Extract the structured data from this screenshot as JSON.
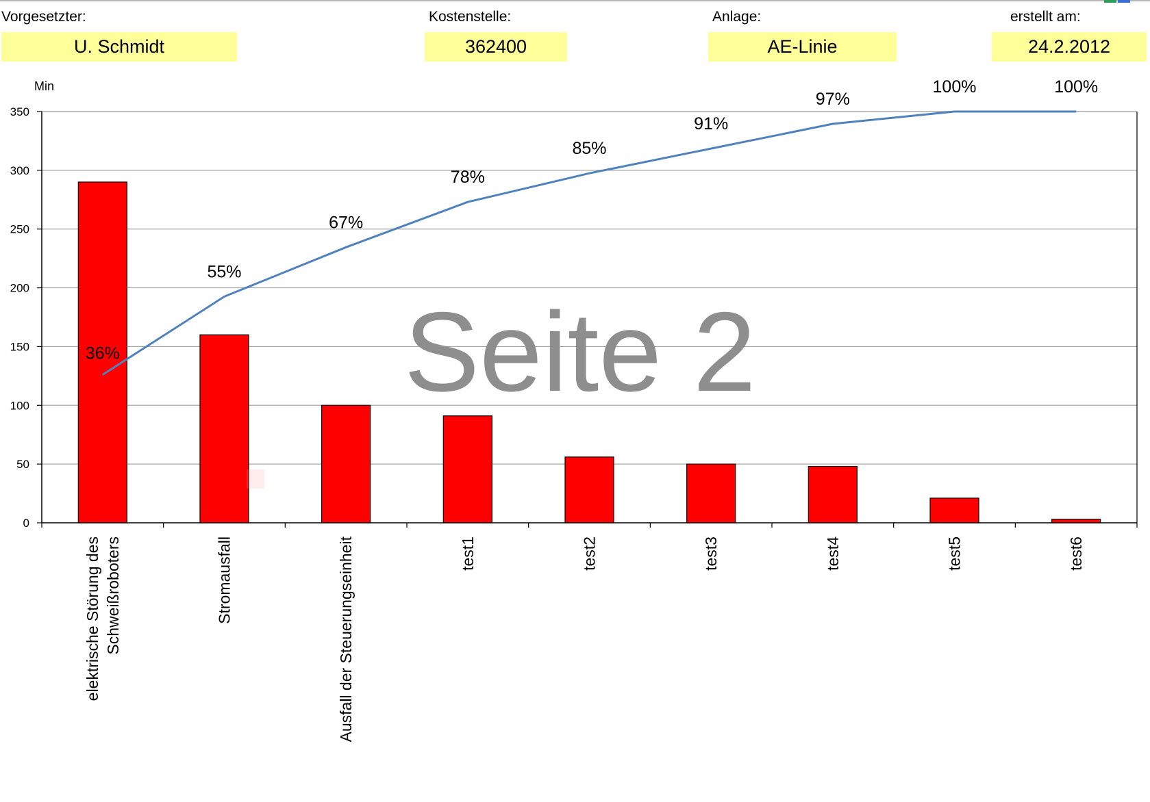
{
  "header": {
    "supervisor_label": "Vorgesetzter:",
    "supervisor_value": "U. Schmidt",
    "cost_center_label": "Kostenstelle:",
    "cost_center_value": "362400",
    "plant_label": "Anlage:",
    "plant_value": "AE-Linie",
    "created_label": "erstellt am:",
    "created_value": "24.2.2012"
  },
  "watermark": "Seite 2",
  "colors": {
    "bar": "#ff0000",
    "line": "#4f81bd",
    "field_background": "#ffff99",
    "watermark": "#8e8e8e"
  },
  "chart_data": {
    "type": "bar",
    "title": "",
    "xlabel": "",
    "ylabel": "Min",
    "ylim": [
      0,
      350
    ],
    "yticks": [
      0,
      50,
      100,
      150,
      200,
      250,
      300,
      350
    ],
    "grid": true,
    "legend": "none",
    "categories": [
      "elektrische Störung des Schweißroboters",
      "Stromausfall",
      "Ausfall der Steuerungseinheit",
      "test1",
      "test2",
      "test3",
      "test4",
      "test5",
      "test6"
    ],
    "category_lines": [
      [
        "elektrische Störung des",
        "Schweißroboters"
      ],
      [
        "Stromausfall"
      ],
      [
        "Ausfall der Steuerungseinheit"
      ],
      [
        "test1"
      ],
      [
        "test2"
      ],
      [
        "test3"
      ],
      [
        "test4"
      ],
      [
        "test5"
      ],
      [
        "test6"
      ]
    ],
    "series": [
      {
        "type": "bar",
        "values": [
          290,
          160,
          100,
          91,
          56,
          50,
          48,
          21,
          3
        ]
      },
      {
        "type": "line",
        "values": [
          36,
          55,
          67,
          78,
          85,
          91,
          97,
          100,
          100
        ],
        "unit": "%",
        "scale_max": 100
      }
    ],
    "line_labels": [
      "36%",
      "55%",
      "67%",
      "78%",
      "85%",
      "91%",
      "97%",
      "100%",
      "100%"
    ]
  }
}
